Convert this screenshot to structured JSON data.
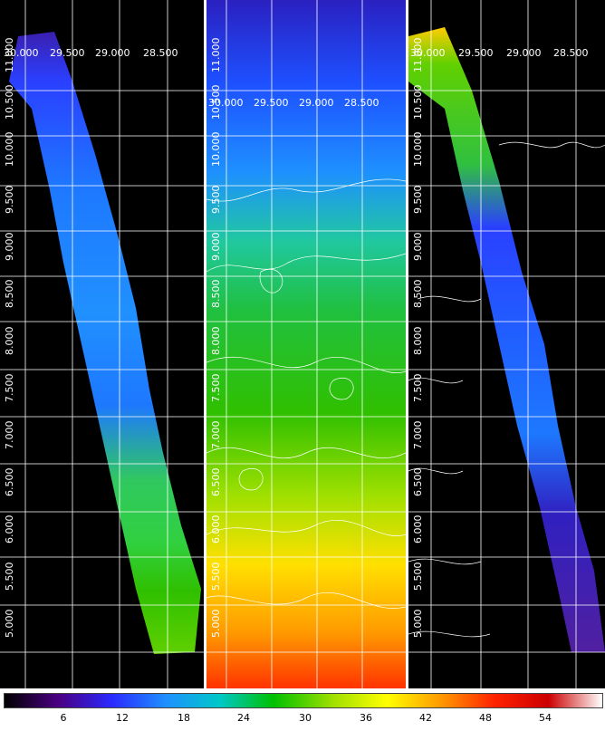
{
  "panels": [
    {
      "name": "left-map"
    },
    {
      "name": "middle-map"
    },
    {
      "name": "right-map"
    }
  ],
  "ra_labels": [
    "30.000",
    "29.500",
    "29.000",
    "28.500"
  ],
  "dec_labels": [
    "11.000",
    "10.500",
    "10.000",
    "9.500",
    "9.000",
    "8.500",
    "8.000",
    "7.500",
    "7.000",
    "6.500",
    "6.000",
    "5.500",
    "5.000"
  ],
  "colorbar": {
    "ticks": [
      "6",
      "12",
      "18",
      "24",
      "30",
      "36",
      "42",
      "48",
      "54"
    ],
    "stops": [
      "#000000",
      "#4b0082",
      "#2a2aff",
      "#1e90ff",
      "#00c8c8",
      "#00c000",
      "#a0e000",
      "#ffff00",
      "#ff9900",
      "#ff2200",
      "#cc0000",
      "#ffffff"
    ]
  },
  "colors": {
    "background": "#000000",
    "grid": "#ffffff",
    "contour": "#ffffff"
  }
}
